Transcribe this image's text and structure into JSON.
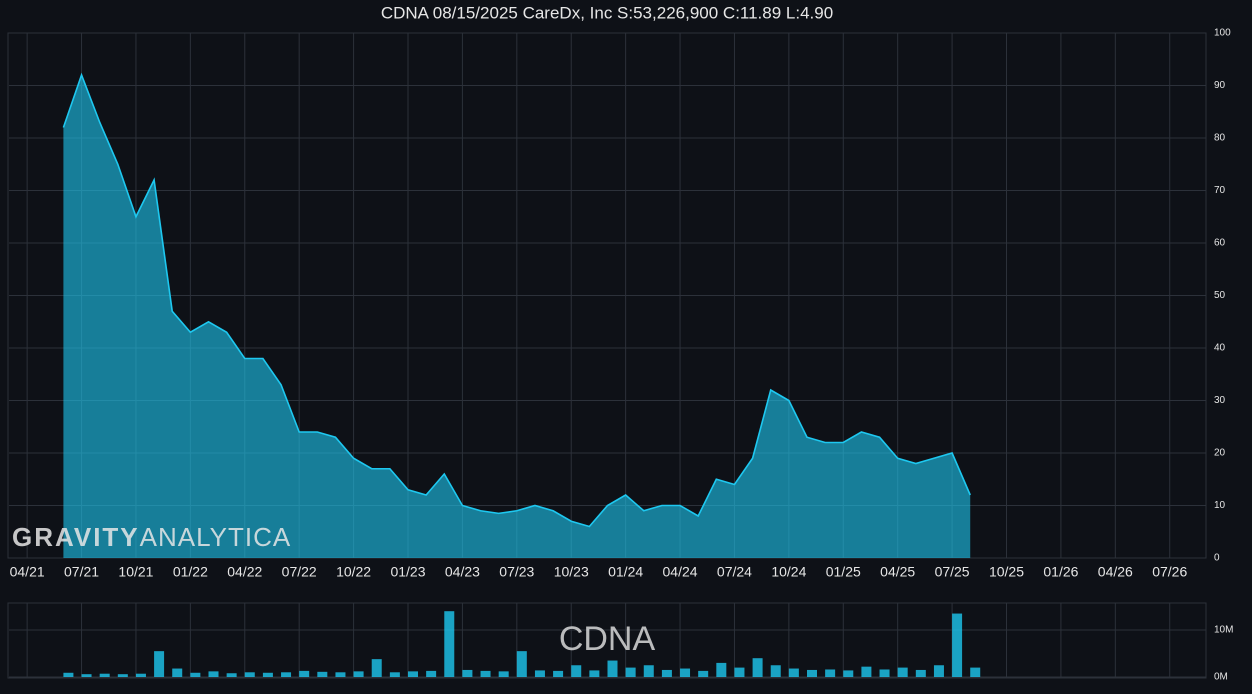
{
  "chart_data": [
    {
      "type": "area",
      "title": "CDNA 08/15/2025 CareDx, Inc S:53,226,900 C:11.89 L:4.90",
      "watermark": {
        "bold": "GRAVITY",
        "light": "ANALYTICA"
      },
      "color": "#1ec8f0",
      "x": [
        "06/21",
        "07/21",
        "08/21",
        "09/21",
        "10/21",
        "11/21",
        "12/21",
        "01/22",
        "02/22",
        "03/22",
        "04/22",
        "05/22",
        "06/22",
        "07/22",
        "08/22",
        "09/22",
        "10/22",
        "11/22",
        "12/22",
        "01/23",
        "02/23",
        "03/23",
        "04/23",
        "05/23",
        "06/23",
        "07/23",
        "08/23",
        "09/23",
        "10/23",
        "11/23",
        "12/23",
        "01/24",
        "02/24",
        "03/24",
        "04/24",
        "05/24",
        "06/24",
        "07/24",
        "08/24",
        "09/24",
        "10/24",
        "11/24",
        "12/24",
        "01/25",
        "02/25",
        "03/25",
        "04/25",
        "05/25",
        "06/25",
        "07/25",
        "08/25"
      ],
      "values": [
        82,
        92,
        83,
        75,
        65,
        72,
        47,
        43,
        45,
        43,
        38,
        38,
        33,
        24,
        24,
        23,
        19,
        17,
        17,
        13,
        12,
        16,
        10,
        9,
        8.5,
        9,
        10,
        9,
        7,
        6,
        10,
        12,
        9,
        10,
        10,
        8,
        15,
        14,
        19,
        32,
        30,
        23,
        22,
        22,
        24,
        23,
        19,
        18,
        19,
        20,
        12
      ],
      "xlim": [
        "03/21",
        "09/26"
      ],
      "xticks": [
        "04/21",
        "07/21",
        "10/21",
        "01/22",
        "04/22",
        "07/22",
        "10/22",
        "01/23",
        "04/23",
        "07/23",
        "10/23",
        "01/24",
        "04/24",
        "07/24",
        "10/24",
        "01/25",
        "04/25",
        "07/25",
        "10/25",
        "01/26",
        "04/26",
        "07/26"
      ],
      "ylim": [
        0,
        100
      ],
      "yticks": [
        0,
        10,
        20,
        30,
        40,
        50,
        60,
        70,
        80,
        90,
        100
      ],
      "grid": true
    },
    {
      "type": "bar",
      "title": "CDNA",
      "color": "#1ec8f0",
      "x": [
        "06/21",
        "07/21",
        "08/21",
        "09/21",
        "10/21",
        "11/21",
        "12/21",
        "01/22",
        "02/22",
        "03/22",
        "04/22",
        "05/22",
        "06/22",
        "07/22",
        "08/22",
        "09/22",
        "10/22",
        "11/22",
        "12/22",
        "01/23",
        "02/23",
        "03/23",
        "04/23",
        "05/23",
        "06/23",
        "07/23",
        "08/23",
        "09/23",
        "10/23",
        "11/23",
        "12/23",
        "01/24",
        "02/24",
        "03/24",
        "04/24",
        "05/24",
        "06/24",
        "07/24",
        "08/24",
        "09/24",
        "10/24",
        "11/24",
        "12/24",
        "01/25",
        "02/25",
        "03/25",
        "04/25",
        "05/25",
        "06/25",
        "07/25",
        "08/25"
      ],
      "values": [
        900000,
        600000,
        700000,
        600000,
        700000,
        5500000,
        1800000,
        900000,
        1200000,
        800000,
        1000000,
        900000,
        1000000,
        1300000,
        1100000,
        1000000,
        1200000,
        3800000,
        1000000,
        1200000,
        1300000,
        14000000,
        1500000,
        1300000,
        1200000,
        5500000,
        1400000,
        1300000,
        2500000,
        1400000,
        3500000,
        2000000,
        2500000,
        1500000,
        1800000,
        1300000,
        3000000,
        2000000,
        4000000,
        2500000,
        1800000,
        1500000,
        1600000,
        1400000,
        2200000,
        1600000,
        2000000,
        1500000,
        2500000,
        13500000,
        2000000
      ],
      "xlim": [
        "03/21",
        "09/26"
      ],
      "ylim": [
        0,
        15000000
      ],
      "yticks": [
        {
          "value": 0,
          "label": "0M"
        },
        {
          "value": 10000000,
          "label": "10M"
        }
      ],
      "grid": true
    }
  ]
}
